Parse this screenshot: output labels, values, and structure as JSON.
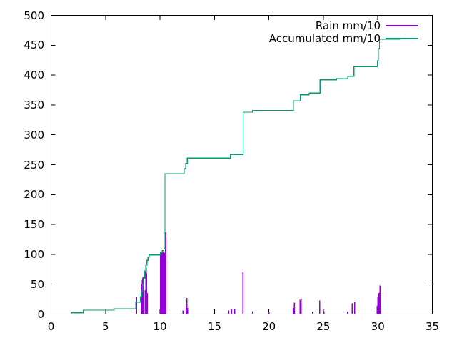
{
  "chart_data": {
    "type": "line",
    "title": "",
    "xlabel": "",
    "ylabel": "",
    "xlim": [
      0,
      35
    ],
    "ylim": [
      0,
      500
    ],
    "x_ticks": [
      0,
      5,
      10,
      15,
      20,
      25,
      30,
      35
    ],
    "y_ticks": [
      0,
      50,
      100,
      150,
      200,
      250,
      300,
      350,
      400,
      450,
      500
    ],
    "grid": false,
    "legend_position": "top-right",
    "background": "#ffffff",
    "border_color": "#000000",
    "series": [
      {
        "name": "Rain mm/10",
        "color": "#9400d3",
        "style": "impulses",
        "points": [
          [
            7.85,
            28
          ],
          [
            8.28,
            40
          ],
          [
            8.32,
            50
          ],
          [
            8.36,
            57
          ],
          [
            8.4,
            60
          ],
          [
            8.44,
            62
          ],
          [
            8.48,
            55
          ],
          [
            8.52,
            45
          ],
          [
            8.65,
            40
          ],
          [
            8.7,
            74
          ],
          [
            8.74,
            77
          ],
          [
            8.78,
            68
          ],
          [
            8.83,
            35
          ],
          [
            10.03,
            96
          ],
          [
            10.06,
            100
          ],
          [
            10.09,
            103
          ],
          [
            10.12,
            104
          ],
          [
            10.15,
            102
          ],
          [
            10.18,
            104
          ],
          [
            10.21,
            103
          ],
          [
            10.24,
            101
          ],
          [
            10.27,
            104
          ],
          [
            10.3,
            102
          ],
          [
            10.33,
            104
          ],
          [
            10.36,
            100
          ],
          [
            10.39,
            103
          ],
          [
            10.42,
            98
          ],
          [
            10.49,
            137
          ],
          [
            10.53,
            128
          ],
          [
            12.1,
            6
          ],
          [
            12.42,
            14
          ],
          [
            12.47,
            27
          ],
          [
            12.53,
            10
          ],
          [
            16.32,
            6
          ],
          [
            16.57,
            8
          ],
          [
            16.85,
            9
          ],
          [
            17.63,
            70
          ],
          [
            18.5,
            5
          ],
          [
            20.0,
            3
          ],
          [
            22.25,
            10
          ],
          [
            22.33,
            19
          ],
          [
            22.85,
            24
          ],
          [
            22.95,
            26
          ],
          [
            24.0,
            4
          ],
          [
            24.67,
            23
          ],
          [
            25.07,
            5
          ],
          [
            27.22,
            4
          ],
          [
            27.63,
            18
          ],
          [
            27.88,
            20
          ],
          [
            29.93,
            14
          ],
          [
            29.99,
            28
          ],
          [
            30.03,
            34
          ],
          [
            30.07,
            35
          ],
          [
            30.11,
            34
          ],
          [
            30.15,
            36
          ],
          [
            30.2,
            48
          ]
        ]
      },
      {
        "name": "Accumulated mm/10",
        "color": "#009e73",
        "style": "steps",
        "points": [
          [
            1.8,
            2
          ],
          [
            2.95,
            6.5
          ],
          [
            5.8,
            9
          ],
          [
            7.77,
            20
          ],
          [
            8.2,
            29
          ],
          [
            8.3,
            38
          ],
          [
            8.4,
            50
          ],
          [
            8.5,
            60
          ],
          [
            8.6,
            72
          ],
          [
            8.7,
            82
          ],
          [
            8.8,
            90
          ],
          [
            8.9,
            95
          ],
          [
            9.0,
            99
          ],
          [
            10.05,
            103
          ],
          [
            10.2,
            106
          ],
          [
            10.35,
            110
          ],
          [
            10.45,
            235
          ],
          [
            12.2,
            243
          ],
          [
            12.35,
            252
          ],
          [
            12.5,
            261
          ],
          [
            16.45,
            267
          ],
          [
            17.63,
            338
          ],
          [
            18.5,
            341
          ],
          [
            22.25,
            357
          ],
          [
            22.9,
            367
          ],
          [
            23.7,
            370
          ],
          [
            24.7,
            392
          ],
          [
            26.2,
            394
          ],
          [
            27.25,
            398
          ],
          [
            27.8,
            414
          ],
          [
            29.95,
            424
          ],
          [
            30.05,
            444
          ],
          [
            30.15,
            460
          ],
          [
            32.05,
            460
          ]
        ]
      }
    ]
  },
  "legend": {
    "entries": [
      "Rain mm/10",
      "Accumulated mm/10"
    ]
  }
}
